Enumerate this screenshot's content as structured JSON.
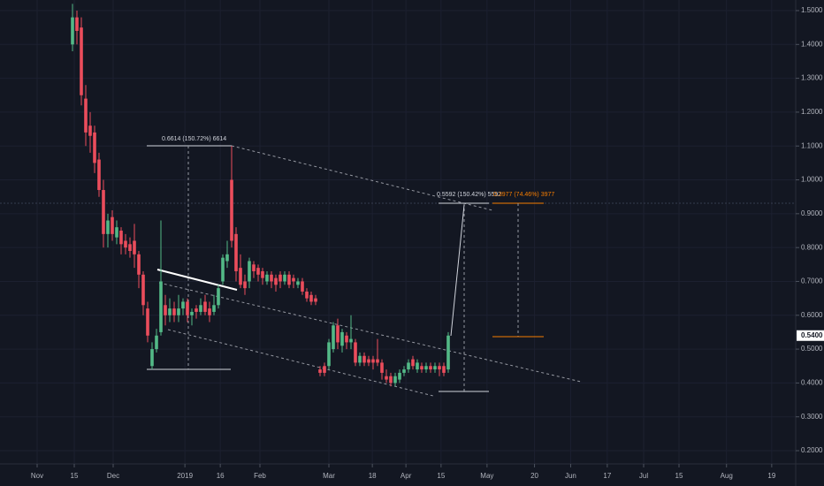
{
  "chart_data": {
    "type": "candlestick",
    "x": [
      14,
      15.75,
      17.5,
      19.25,
      21,
      22.75,
      24.5,
      26.25,
      28,
      29.75,
      31.5,
      33.25,
      35,
      36.75,
      38.5,
      40.25,
      42,
      43.75,
      45.5,
      47.25,
      49,
      50.75,
      52.5,
      54.25,
      56,
      57.75,
      59.5,
      61.25,
      63,
      64.75,
      66.5,
      68.25,
      70,
      71.75,
      73.5,
      75.25,
      77,
      78.75,
      80.5,
      82.25,
      84,
      85.75,
      87.5,
      89.25,
      91,
      92.75,
      94.5,
      96.25,
      98,
      99.75,
      101.5,
      103.25,
      105,
      106.75,
      108.5,
      110.25,
      112,
      113.75,
      115.5,
      117.25,
      119,
      120.75,
      122.5,
      124.25,
      126,
      127.75,
      129.5,
      131.25,
      133,
      134.75,
      136.5,
      138.25,
      140,
      141.75,
      143.5,
      145.25,
      147,
      148.75,
      150.5,
      152.25,
      154,
      155.75,
      157.5,
      159.25,
      161,
      162.75
    ],
    "open": [
      1.4,
      1.48,
      1.45,
      1.24,
      1.16,
      1.14,
      1.06,
      0.97,
      0.84,
      0.89,
      0.83,
      0.85,
      0.82,
      0.81,
      0.82,
      0.78,
      0.72,
      0.62,
      0.45,
      0.5,
      0.55,
      0.63,
      0.6,
      0.62,
      0.6,
      0.62,
      0.64,
      0.6,
      0.62,
      0.61,
      0.64,
      0.62,
      0.61,
      0.63,
      0.7,
      0.76,
      1.0,
      0.84,
      0.74,
      0.7,
      0.7,
      0.75,
      0.74,
      0.73,
      0.7,
      0.72,
      0.71,
      0.72,
      0.7,
      0.72,
      0.71,
      0.69,
      0.7,
      0.67,
      0.66,
      0.65,
      0.44,
      0.45,
      0.45,
      0.5,
      0.57,
      0.51,
      0.54,
      0.52,
      0.52,
      0.46,
      0.48,
      0.47,
      0.47,
      0.47,
      0.46,
      0.42,
      0.42,
      0.4,
      0.41,
      0.43,
      0.44,
      0.47,
      0.44,
      0.45,
      0.44,
      0.45,
      0.44,
      0.45,
      0.45,
      0.44
    ],
    "high": [
      1.52,
      1.5,
      1.48,
      1.28,
      1.2,
      1.16,
      1.08,
      1.0,
      0.9,
      0.91,
      0.88,
      0.86,
      0.84,
      0.83,
      0.87,
      0.79,
      0.73,
      0.64,
      0.52,
      0.56,
      0.88,
      0.66,
      0.65,
      0.64,
      0.66,
      0.65,
      0.65,
      0.62,
      0.63,
      0.65,
      0.66,
      0.64,
      0.66,
      0.69,
      0.78,
      0.82,
      1.1,
      0.86,
      0.78,
      0.72,
      0.77,
      0.76,
      0.75,
      0.74,
      0.73,
      0.73,
      0.72,
      0.73,
      0.73,
      0.73,
      0.72,
      0.71,
      0.71,
      0.68,
      0.67,
      0.66,
      0.45,
      0.46,
      0.53,
      0.58,
      0.59,
      0.56,
      0.55,
      0.6,
      0.53,
      0.49,
      0.49,
      0.48,
      0.48,
      0.53,
      0.47,
      0.44,
      0.43,
      0.43,
      0.44,
      0.45,
      0.47,
      0.48,
      0.47,
      0.46,
      0.46,
      0.46,
      0.46,
      0.46,
      0.46,
      0.55
    ],
    "low": [
      1.38,
      1.4,
      1.22,
      1.1,
      1.08,
      1.02,
      0.95,
      0.8,
      0.8,
      0.82,
      0.81,
      0.78,
      0.78,
      0.77,
      0.74,
      0.68,
      0.6,
      0.52,
      0.44,
      0.49,
      0.54,
      0.57,
      0.58,
      0.58,
      0.58,
      0.6,
      0.58,
      0.57,
      0.59,
      0.6,
      0.6,
      0.58,
      0.6,
      0.62,
      0.69,
      0.74,
      0.8,
      0.7,
      0.68,
      0.66,
      0.68,
      0.71,
      0.7,
      0.69,
      0.69,
      0.68,
      0.67,
      0.68,
      0.69,
      0.68,
      0.68,
      0.68,
      0.66,
      0.64,
      0.63,
      0.63,
      0.42,
      0.42,
      0.44,
      0.49,
      0.5,
      0.49,
      0.5,
      0.5,
      0.45,
      0.45,
      0.45,
      0.45,
      0.44,
      0.45,
      0.41,
      0.4,
      0.39,
      0.39,
      0.4,
      0.42,
      0.43,
      0.44,
      0.43,
      0.43,
      0.43,
      0.43,
      0.43,
      0.42,
      0.42,
      0.43
    ],
    "close": [
      1.48,
      1.44,
      1.25,
      1.14,
      1.13,
      1.05,
      0.97,
      0.84,
      0.88,
      0.84,
      0.86,
      0.81,
      0.8,
      0.79,
      0.78,
      0.72,
      0.63,
      0.54,
      0.5,
      0.54,
      0.7,
      0.6,
      0.62,
      0.6,
      0.62,
      0.64,
      0.6,
      0.61,
      0.61,
      0.63,
      0.61,
      0.6,
      0.63,
      0.68,
      0.77,
      0.78,
      0.82,
      0.73,
      0.69,
      0.68,
      0.76,
      0.73,
      0.72,
      0.71,
      0.72,
      0.7,
      0.69,
      0.7,
      0.72,
      0.69,
      0.7,
      0.7,
      0.67,
      0.65,
      0.64,
      0.64,
      0.43,
      0.43,
      0.52,
      0.57,
      0.52,
      0.55,
      0.52,
      0.53,
      0.46,
      0.48,
      0.46,
      0.46,
      0.46,
      0.46,
      0.43,
      0.41,
      0.4,
      0.42,
      0.43,
      0.44,
      0.46,
      0.45,
      0.46,
      0.44,
      0.45,
      0.44,
      0.45,
      0.44,
      0.43,
      0.54
    ],
    "up_color": "#53b987",
    "down_color": "#eb4d5c",
    "xlim": [
      -14.7,
      300.3
    ],
    "xticks": [
      {
        "value": 0,
        "label": "Nov"
      },
      {
        "value": 14.7,
        "label": "15"
      },
      {
        "value": 30.1,
        "label": "Dec"
      },
      {
        "value": 58.5,
        "label": "2019"
      },
      {
        "value": 72.5,
        "label": "16"
      },
      {
        "value": 88.2,
        "label": "Feb"
      },
      {
        "value": 115.5,
        "label": "Mar"
      },
      {
        "value": 132.7,
        "label": "18"
      },
      {
        "value": 146,
        "label": "Apr"
      },
      {
        "value": 159.9,
        "label": "15"
      },
      {
        "value": 178.1,
        "label": "May"
      },
      {
        "value": 196.9,
        "label": "20"
      },
      {
        "value": 211.2,
        "label": "Jun"
      },
      {
        "value": 225.7,
        "label": "17"
      },
      {
        "value": 240.1,
        "label": "Jul"
      },
      {
        "value": 254.1,
        "label": "15"
      },
      {
        "value": 272.9,
        "label": "Aug"
      },
      {
        "value": 290.8,
        "label": "19"
      }
    ],
    "ylim": [
      0.1609,
      1.5313
    ],
    "yticks": [
      {
        "value": 0.2,
        "label": "0.2000"
      },
      {
        "value": 0.3,
        "label": "0.3000"
      },
      {
        "value": 0.4,
        "label": "0.4000"
      },
      {
        "value": 0.5,
        "label": "0.5000"
      },
      {
        "value": 0.6,
        "label": "0.6000"
      },
      {
        "value": 0.7,
        "label": "0.7000"
      },
      {
        "value": 0.8,
        "label": "0.8000"
      },
      {
        "value": 0.9,
        "label": "0.9000"
      },
      {
        "value": 1.0,
        "label": "1.0000"
      },
      {
        "value": 1.1,
        "label": "1.1000"
      },
      {
        "value": 1.2,
        "label": "1.2000"
      },
      {
        "value": 1.3,
        "label": "1.3000"
      },
      {
        "value": 1.4,
        "label": "1.4000"
      },
      {
        "value": 1.5,
        "label": "1.5000"
      }
    ],
    "last_price": {
      "value": 0.54,
      "label": "0.5400"
    },
    "grid": true,
    "annotations": [
      "0.6614 (150.72%) 6614",
      "0.5592 (150.42%) 5592",
      "0.3977 (74.46%) 3977"
    ]
  }
}
